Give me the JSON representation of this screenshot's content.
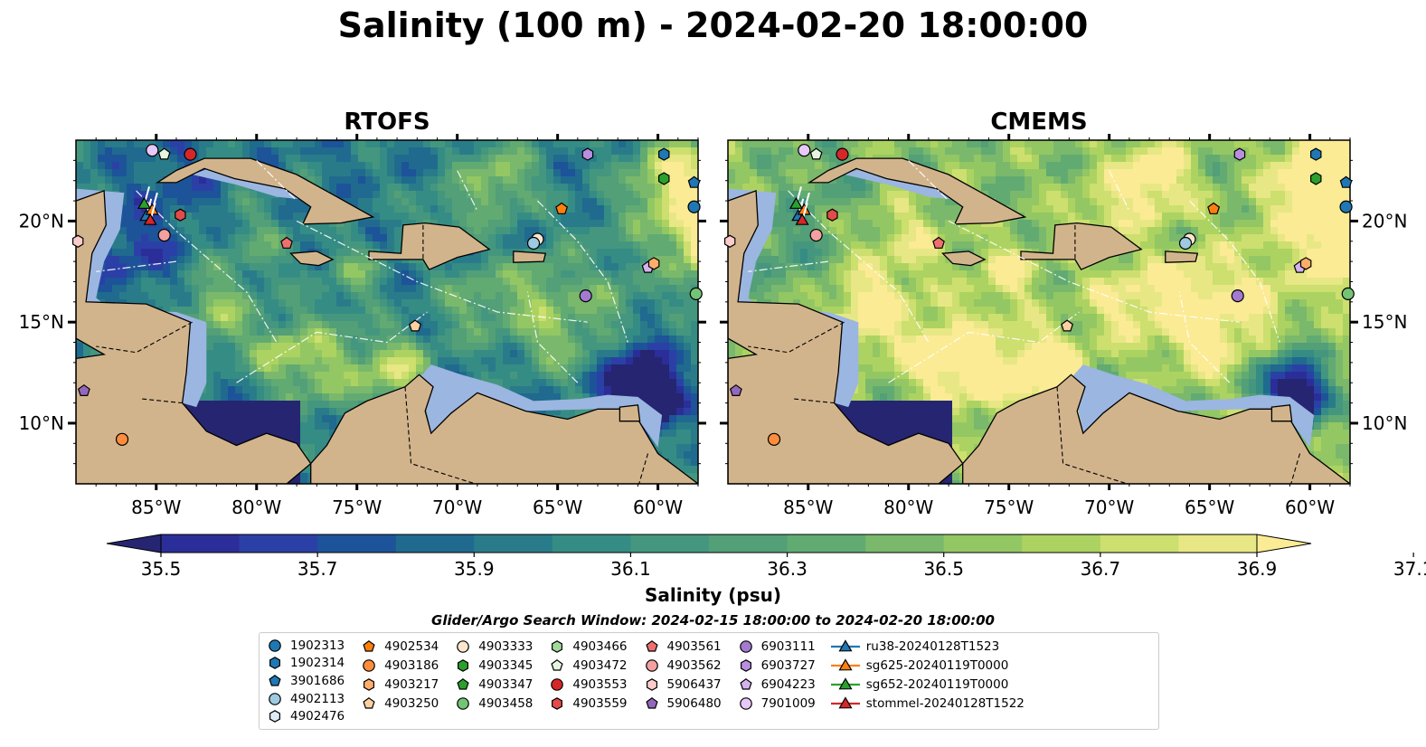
{
  "title": "Salinity (100 m) - 2024-02-20 18:00:00",
  "panels": [
    {
      "title": "RTOFS",
      "palette": "rtofs"
    },
    {
      "title": "CMEMS",
      "palette": "cmems"
    }
  ],
  "lon_ticks": [
    "85°W",
    "80°W",
    "75°W",
    "70°W",
    "65°W",
    "60°W"
  ],
  "lat_ticks": [
    "20°N",
    "15°N",
    "10°N"
  ],
  "colorbar": {
    "label": "Salinity (psu)",
    "ticks": [
      "35.5",
      "35.7",
      "35.9",
      "36.1",
      "36.3",
      "36.5",
      "36.7",
      "36.9",
      "37.1"
    ],
    "colors": [
      "#252571",
      "#2b2e98",
      "#2b40a6",
      "#1d5398",
      "#1f6a8e",
      "#2a7b8a",
      "#358c84",
      "#44977e",
      "#529f78",
      "#61ab72",
      "#7ab86c",
      "#93c763",
      "#acd361",
      "#ccdf6f",
      "#e8e785",
      "#fbeb94"
    ]
  },
  "window_title": "Glider/Argo Search Window: 2024-02-15 18:00:00 to 2024-02-20 18:00:00",
  "colors": {
    "land": "#d2b48c",
    "shelf": "#9bb6e0",
    "deep": "#2a1d6b"
  },
  "legend": [
    [
      {
        "label": "1902313",
        "marker": "circle",
        "color": "#1f77b4"
      },
      {
        "label": "1902314",
        "marker": "hexagon",
        "color": "#1f77b4"
      },
      {
        "label": "3901686",
        "marker": "pentagon",
        "color": "#1f77b4"
      },
      {
        "label": "4902113",
        "marker": "circle",
        "color": "#9ecae1"
      },
      {
        "label": "4902476",
        "marker": "hexagon",
        "color": "#deebf7"
      }
    ],
    [
      {
        "label": "4902534",
        "marker": "pentagon",
        "color": "#ff7f0e"
      },
      {
        "label": "4903186",
        "marker": "circle",
        "color": "#fd8d3c"
      },
      {
        "label": "4903217",
        "marker": "hexagon",
        "color": "#fdae6b"
      },
      {
        "label": "4903250",
        "marker": "pentagon",
        "color": "#fdd0a2"
      }
    ],
    [
      {
        "label": "4903333",
        "marker": "circle",
        "color": "#fee6ce"
      },
      {
        "label": "4903345",
        "marker": "hexagon",
        "color": "#2ca02c"
      },
      {
        "label": "4903347",
        "marker": "pentagon",
        "color": "#2ca02c"
      },
      {
        "label": "4903458",
        "marker": "circle",
        "color": "#74c476"
      }
    ],
    [
      {
        "label": "4903466",
        "marker": "hexagon",
        "color": "#a1d99b"
      },
      {
        "label": "4903472",
        "marker": "pentagon",
        "color": "#e5f5e0"
      },
      {
        "label": "4903553",
        "marker": "circle",
        "color": "#d62728"
      },
      {
        "label": "4903559",
        "marker": "hexagon",
        "color": "#e34a4a"
      }
    ],
    [
      {
        "label": "4903561",
        "marker": "pentagon",
        "color": "#ef6f6f"
      },
      {
        "label": "4903562",
        "marker": "circle",
        "color": "#f4a0a0"
      },
      {
        "label": "5906437",
        "marker": "hexagon",
        "color": "#fbcccc"
      },
      {
        "label": "5906480",
        "marker": "pentagon",
        "color": "#9467bd"
      }
    ],
    [
      {
        "label": "6903111",
        "marker": "circle",
        "color": "#a47ad1"
      },
      {
        "label": "6903727",
        "marker": "hexagon",
        "color": "#b98ee0"
      },
      {
        "label": "6904223",
        "marker": "pentagon",
        "color": "#d4b2ef"
      },
      {
        "label": "7901009",
        "marker": "circle",
        "color": "#e8c8f8"
      }
    ],
    [
      {
        "label": "ru38-20240128T1523",
        "marker": "triangle-line",
        "color": "#1f77b4"
      },
      {
        "label": "sg625-20240119T0000",
        "marker": "triangle-line",
        "color": "#ff7f0e"
      },
      {
        "label": "sg652-20240119T0000",
        "marker": "triangle-line",
        "color": "#2ca02c"
      },
      {
        "label": "stommel-20240128T1522",
        "marker": "triangle-line",
        "color": "#d62728"
      }
    ]
  ]
}
